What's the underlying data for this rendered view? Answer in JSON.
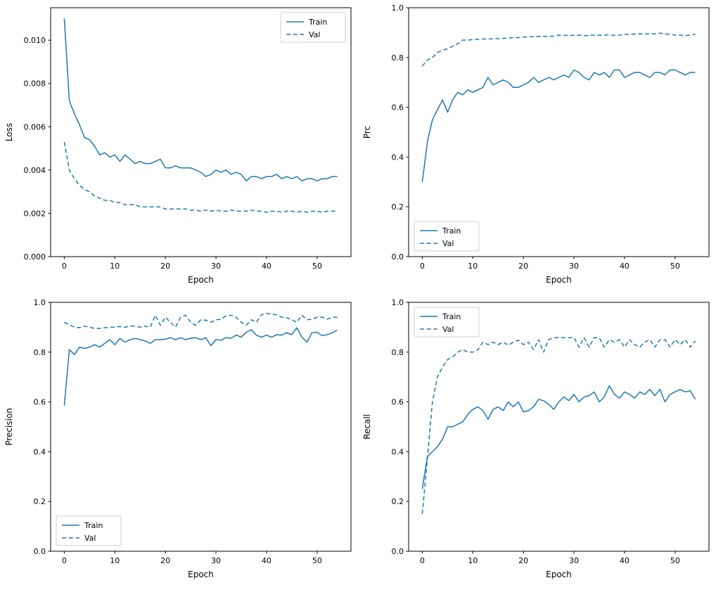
{
  "page": {
    "background": "#ffffff",
    "accent_color": "#1f77b4"
  },
  "epochs": [
    0,
    1,
    2,
    3,
    4,
    5,
    6,
    7,
    8,
    9,
    10,
    11,
    12,
    13,
    14,
    15,
    16,
    17,
    18,
    19,
    20,
    21,
    22,
    23,
    24,
    25,
    26,
    27,
    28,
    29,
    30,
    31,
    32,
    33,
    34,
    35,
    36,
    37,
    38,
    39,
    40,
    41,
    42,
    43,
    44,
    45,
    46,
    47,
    48,
    49,
    50,
    51,
    52,
    53,
    54
  ],
  "chart_data": [
    {
      "id": "loss",
      "type": "line",
      "title": "",
      "xlabel": "Epoch",
      "ylabel": "Loss",
      "xlim": [
        -2.7,
        56.7
      ],
      "ylim": [
        0,
        0.0115
      ],
      "grid": false,
      "xticks": {
        "values": [
          0,
          10,
          20,
          30,
          40,
          50
        ],
        "labels": [
          "0",
          "10",
          "20",
          "30",
          "40",
          "50"
        ]
      },
      "yticks": {
        "values": [
          0,
          0.002,
          0.004,
          0.006,
          0.008,
          0.01
        ],
        "labels": [
          "0.000",
          "0.002",
          "0.004",
          "0.006",
          "0.008",
          "0.010"
        ]
      },
      "legend": {
        "position": "upper-right",
        "entries": [
          "Train",
          "Val"
        ]
      },
      "series": [
        {
          "name": "Train",
          "linestyle": "solid",
          "color": "#1f77b4",
          "values": [
            0.011,
            0.0072,
            0.0066,
            0.0061,
            0.0055,
            0.0054,
            0.0051,
            0.0047,
            0.0048,
            0.0046,
            0.0047,
            0.0044,
            0.0047,
            0.0045,
            0.0043,
            0.0044,
            0.0043,
            0.0043,
            0.0044,
            0.0045,
            0.0041,
            0.0041,
            0.0042,
            0.0041,
            0.0041,
            0.0041,
            0.004,
            0.0039,
            0.0037,
            0.0038,
            0.004,
            0.0039,
            0.004,
            0.0038,
            0.0039,
            0.0038,
            0.0035,
            0.0037,
            0.0037,
            0.0036,
            0.0037,
            0.0037,
            0.0038,
            0.0036,
            0.0037,
            0.0036,
            0.0037,
            0.0035,
            0.0036,
            0.0036,
            0.0035,
            0.0036,
            0.0036,
            0.0037,
            0.0037
          ]
        },
        {
          "name": "Val",
          "linestyle": "dashed",
          "color": "#1f77b4",
          "values": [
            0.0053,
            0.004,
            0.0036,
            0.0033,
            0.0031,
            0.003,
            0.0028,
            0.0027,
            0.0026,
            0.0026,
            0.0025,
            0.0025,
            0.0024,
            0.0024,
            0.0024,
            0.0023,
            0.0023,
            0.0023,
            0.0023,
            0.0023,
            0.0022,
            0.0022,
            0.0022,
            0.0022,
            0.0022,
            0.00215,
            0.00215,
            0.0021,
            0.00215,
            0.0021,
            0.00215,
            0.0021,
            0.0021,
            0.00215,
            0.0021,
            0.0021,
            0.0021,
            0.00215,
            0.0021,
            0.0021,
            0.00205,
            0.0021,
            0.0021,
            0.00205,
            0.0021,
            0.0021,
            0.00205,
            0.0021,
            0.00205,
            0.0021,
            0.0021,
            0.00205,
            0.0021,
            0.0021,
            0.0021
          ]
        }
      ]
    },
    {
      "id": "prc",
      "type": "line",
      "title": "",
      "xlabel": "Epoch",
      "ylabel": "Prc",
      "xlim": [
        -2.7,
        56.7
      ],
      "ylim": [
        0,
        1.0
      ],
      "grid": false,
      "xticks": {
        "values": [
          0,
          10,
          20,
          30,
          40,
          50
        ],
        "labels": [
          "0",
          "10",
          "20",
          "30",
          "40",
          "50"
        ]
      },
      "yticks": {
        "values": [
          0,
          0.2,
          0.4,
          0.6,
          0.8,
          1.0
        ],
        "labels": [
          "0.0",
          "0.2",
          "0.4",
          "0.6",
          "0.8",
          "1.0"
        ]
      },
      "legend": {
        "position": "lower-left",
        "entries": [
          "Train",
          "Val"
        ]
      },
      "series": [
        {
          "name": "Train",
          "linestyle": "solid",
          "color": "#1f77b4",
          "values": [
            0.3,
            0.46,
            0.55,
            0.59,
            0.63,
            0.58,
            0.63,
            0.66,
            0.65,
            0.67,
            0.66,
            0.67,
            0.68,
            0.72,
            0.69,
            0.7,
            0.71,
            0.7,
            0.68,
            0.68,
            0.69,
            0.7,
            0.72,
            0.7,
            0.71,
            0.72,
            0.71,
            0.72,
            0.73,
            0.72,
            0.75,
            0.74,
            0.72,
            0.71,
            0.74,
            0.73,
            0.74,
            0.72,
            0.75,
            0.75,
            0.72,
            0.73,
            0.74,
            0.74,
            0.73,
            0.72,
            0.74,
            0.74,
            0.73,
            0.75,
            0.75,
            0.74,
            0.73,
            0.74,
            0.74
          ]
        },
        {
          "name": "Val",
          "linestyle": "dashed",
          "color": "#1f77b4",
          "values": [
            0.765,
            0.79,
            0.8,
            0.82,
            0.83,
            0.835,
            0.845,
            0.855,
            0.87,
            0.87,
            0.872,
            0.873,
            0.874,
            0.875,
            0.875,
            0.876,
            0.877,
            0.878,
            0.88,
            0.88,
            0.882,
            0.883,
            0.884,
            0.885,
            0.885,
            0.885,
            0.886,
            0.89,
            0.889,
            0.888,
            0.889,
            0.89,
            0.888,
            0.888,
            0.89,
            0.89,
            0.889,
            0.892,
            0.888,
            0.89,
            0.893,
            0.893,
            0.894,
            0.895,
            0.894,
            0.895,
            0.895,
            0.898,
            0.895,
            0.893,
            0.89,
            0.89,
            0.888,
            0.89,
            0.894
          ]
        }
      ]
    },
    {
      "id": "precision",
      "type": "line",
      "title": "",
      "xlabel": "Epoch",
      "ylabel": "Precision",
      "xlim": [
        -2.7,
        56.7
      ],
      "ylim": [
        0,
        1.0
      ],
      "grid": false,
      "xticks": {
        "values": [
          0,
          10,
          20,
          30,
          40,
          50
        ],
        "labels": [
          "0",
          "10",
          "20",
          "30",
          "40",
          "50"
        ]
      },
      "yticks": {
        "values": [
          0,
          0.2,
          0.4,
          0.6,
          0.8,
          1.0
        ],
        "labels": [
          "0.0",
          "0.2",
          "0.4",
          "0.6",
          "0.8",
          "1.0"
        ]
      },
      "legend": {
        "position": "lower-left",
        "entries": [
          "Train",
          "Val"
        ]
      },
      "series": [
        {
          "name": "Train",
          "linestyle": "solid",
          "color": "#1f77b4",
          "values": [
            0.585,
            0.81,
            0.79,
            0.82,
            0.815,
            0.82,
            0.83,
            0.82,
            0.835,
            0.85,
            0.83,
            0.855,
            0.84,
            0.85,
            0.855,
            0.85,
            0.845,
            0.835,
            0.85,
            0.85,
            0.852,
            0.858,
            0.85,
            0.858,
            0.85,
            0.856,
            0.858,
            0.85,
            0.858,
            0.826,
            0.85,
            0.848,
            0.858,
            0.856,
            0.868,
            0.86,
            0.88,
            0.89,
            0.868,
            0.86,
            0.868,
            0.86,
            0.87,
            0.868,
            0.878,
            0.87,
            0.898,
            0.86,
            0.84,
            0.878,
            0.88,
            0.866,
            0.87,
            0.878,
            0.888
          ]
        },
        {
          "name": "Val",
          "linestyle": "dashed",
          "color": "#1f77b4",
          "values": [
            0.92,
            0.91,
            0.9,
            0.898,
            0.904,
            0.9,
            0.895,
            0.895,
            0.898,
            0.9,
            0.9,
            0.903,
            0.9,
            0.904,
            0.905,
            0.9,
            0.904,
            0.9,
            0.948,
            0.908,
            0.94,
            0.92,
            0.9,
            0.94,
            0.948,
            0.92,
            0.908,
            0.93,
            0.928,
            0.92,
            0.93,
            0.932,
            0.946,
            0.948,
            0.94,
            0.92,
            0.908,
            0.93,
            0.92,
            0.95,
            0.956,
            0.952,
            0.95,
            0.94,
            0.938,
            0.93,
            0.92,
            0.948,
            0.93,
            0.932,
            0.94,
            0.94,
            0.932,
            0.94,
            0.94
          ]
        }
      ]
    },
    {
      "id": "recall",
      "type": "line",
      "title": "",
      "xlabel": "Epoch",
      "ylabel": "Recall",
      "xlim": [
        -2.7,
        56.7
      ],
      "ylim": [
        0,
        1.0
      ],
      "grid": false,
      "xticks": {
        "values": [
          0,
          10,
          20,
          30,
          40,
          50
        ],
        "labels": [
          "0",
          "10",
          "20",
          "30",
          "40",
          "50"
        ]
      },
      "yticks": {
        "values": [
          0,
          0.2,
          0.4,
          0.6,
          0.8,
          1.0
        ],
        "labels": [
          "0.0",
          "0.2",
          "0.4",
          "0.6",
          "0.8",
          "1.0"
        ]
      },
      "legend": {
        "position": "upper-left",
        "entries": [
          "Train",
          "Val"
        ]
      },
      "series": [
        {
          "name": "Train",
          "linestyle": "solid",
          "color": "#1f77b4",
          "values": [
            0.25,
            0.38,
            0.4,
            0.42,
            0.45,
            0.5,
            0.5,
            0.51,
            0.52,
            0.55,
            0.57,
            0.58,
            0.565,
            0.53,
            0.57,
            0.58,
            0.565,
            0.6,
            0.58,
            0.6,
            0.56,
            0.565,
            0.58,
            0.61,
            0.605,
            0.59,
            0.57,
            0.6,
            0.62,
            0.605,
            0.63,
            0.6,
            0.62,
            0.625,
            0.64,
            0.6,
            0.62,
            0.665,
            0.63,
            0.615,
            0.64,
            0.63,
            0.615,
            0.64,
            0.63,
            0.65,
            0.625,
            0.65,
            0.6,
            0.63,
            0.64,
            0.65,
            0.64,
            0.645,
            0.61
          ]
        },
        {
          "name": "Val",
          "linestyle": "dashed",
          "color": "#1f77b4",
          "values": [
            0.15,
            0.37,
            0.6,
            0.7,
            0.74,
            0.77,
            0.78,
            0.8,
            0.81,
            0.8,
            0.8,
            0.81,
            0.84,
            0.83,
            0.84,
            0.83,
            0.84,
            0.828,
            0.84,
            0.848,
            0.83,
            0.84,
            0.81,
            0.85,
            0.8,
            0.85,
            0.858,
            0.858,
            0.858,
            0.858,
            0.858,
            0.82,
            0.858,
            0.82,
            0.858,
            0.858,
            0.82,
            0.85,
            0.84,
            0.85,
            0.82,
            0.85,
            0.83,
            0.82,
            0.84,
            0.85,
            0.82,
            0.85,
            0.85,
            0.82,
            0.85,
            0.83,
            0.85,
            0.82,
            0.845
          ]
        }
      ]
    }
  ]
}
